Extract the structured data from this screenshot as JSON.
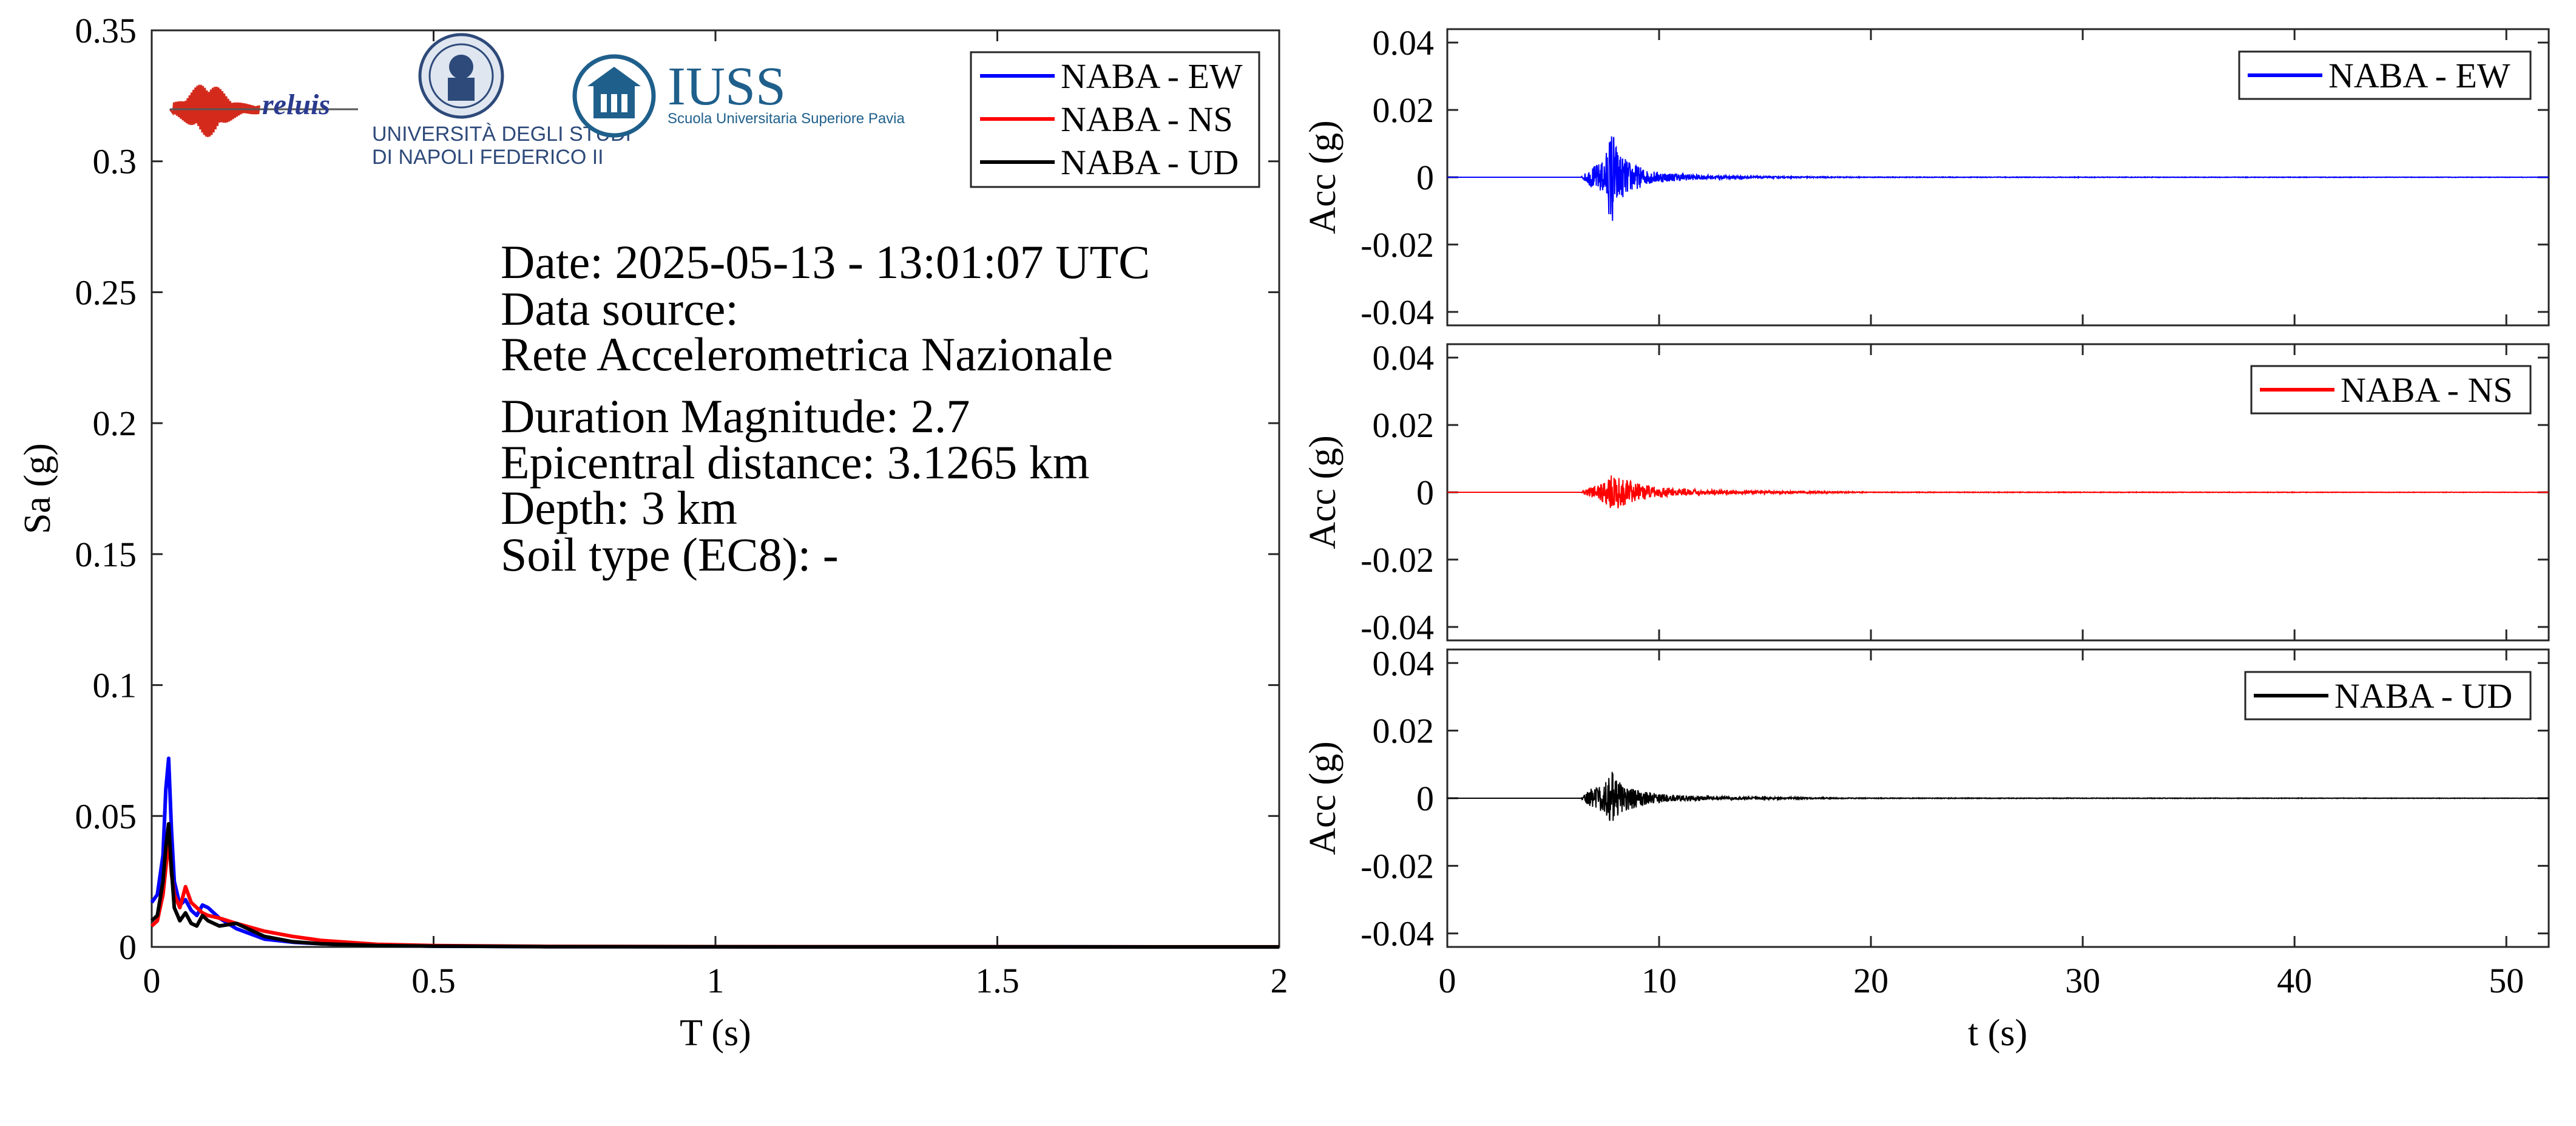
{
  "chart_data": [
    {
      "type": "line",
      "xlabel": "T (s)",
      "ylabel": "Sa (g)",
      "xlim": [
        0,
        2
      ],
      "ylim": [
        0,
        0.35
      ],
      "xticks": [
        "0",
        "0.5",
        "1",
        "1.5",
        "2"
      ],
      "yticks": [
        "0",
        "0.05",
        "0.1",
        "0.15",
        "0.2",
        "0.25",
        "0.3",
        "0.35"
      ],
      "legend_position": "top-right",
      "series": [
        {
          "name": "NABA - EW",
          "color": "#0000ff",
          "x": [
            0,
            0.01,
            0.02,
            0.025,
            0.03,
            0.035,
            0.04,
            0.05,
            0.06,
            0.07,
            0.08,
            0.09,
            0.1,
            0.12,
            0.15,
            0.2,
            0.25,
            0.3,
            0.4,
            0.5,
            0.7,
            1.0,
            1.5,
            2.0
          ],
          "y": [
            0.017,
            0.02,
            0.035,
            0.06,
            0.072,
            0.045,
            0.025,
            0.016,
            0.018,
            0.014,
            0.012,
            0.016,
            0.015,
            0.011,
            0.007,
            0.003,
            0.0018,
            0.0012,
            0.0006,
            0.0003,
            0.0001,
            5e-05,
            2e-05,
            1e-05
          ]
        },
        {
          "name": "NABA - NS",
          "color": "#ff0000",
          "x": [
            0,
            0.01,
            0.02,
            0.025,
            0.03,
            0.035,
            0.04,
            0.05,
            0.06,
            0.07,
            0.08,
            0.09,
            0.1,
            0.12,
            0.15,
            0.2,
            0.25,
            0.3,
            0.4,
            0.5,
            0.7,
            1.0,
            1.5,
            2.0
          ],
          "y": [
            0.008,
            0.01,
            0.02,
            0.03,
            0.042,
            0.028,
            0.02,
            0.015,
            0.023,
            0.017,
            0.015,
            0.013,
            0.012,
            0.011,
            0.009,
            0.006,
            0.004,
            0.0025,
            0.001,
            0.0005,
            0.0002,
            0.0001,
            4e-05,
            2e-05
          ]
        },
        {
          "name": "NABA - UD",
          "color": "#000000",
          "x": [
            0,
            0.01,
            0.02,
            0.025,
            0.03,
            0.035,
            0.04,
            0.05,
            0.06,
            0.07,
            0.08,
            0.09,
            0.1,
            0.12,
            0.15,
            0.2,
            0.25,
            0.3,
            0.4,
            0.5,
            0.7,
            1.0,
            1.5,
            2.0
          ],
          "y": [
            0.01,
            0.012,
            0.025,
            0.038,
            0.047,
            0.03,
            0.015,
            0.01,
            0.013,
            0.009,
            0.008,
            0.012,
            0.01,
            0.008,
            0.009,
            0.004,
            0.002,
            0.0012,
            0.0005,
            0.0003,
            0.0001,
            5e-05,
            2e-05,
            1e-05
          ]
        }
      ]
    },
    {
      "type": "line",
      "xlabel": "",
      "ylabel": "Acc (g)",
      "xlim": [
        0,
        52
      ],
      "ylim": [
        -0.044,
        0.044
      ],
      "yticks": [
        "0.04",
        "0.02",
        "0",
        "-0.02",
        "-0.04"
      ],
      "legend_position": "top-right",
      "series": [
        {
          "name": "NABA - EW",
          "color": "#0000ff",
          "envelope": {
            "t": [
              0,
              6.3,
              6.8,
              7.4,
              7.7,
              7.8,
              8.0,
              8.3,
              8.8,
              9.5,
              10.5,
              12,
              14,
              16,
              20,
              52
            ],
            "amp": [
              0,
              0,
              0.003,
              0.005,
              0.013,
              0.016,
              0.009,
              0.006,
              0.004,
              0.002,
              0.0013,
              0.0007,
              0.0004,
              0.0002,
              0.0001,
              5e-05
            ]
          }
        }
      ]
    },
    {
      "type": "line",
      "xlabel": "",
      "ylabel": "Acc (g)",
      "xlim": [
        0,
        52
      ],
      "ylim": [
        -0.044,
        0.044
      ],
      "yticks": [
        "0.04",
        "0.02",
        "0",
        "-0.02",
        "-0.04"
      ],
      "legend_position": "top-right",
      "series": [
        {
          "name": "NABA - NS",
          "color": "#ff0000",
          "envelope": {
            "t": [
              0,
              6.3,
              6.8,
              7.4,
              7.8,
              8.0,
              8.3,
              8.8,
              9.5,
              10.5,
              12,
              14,
              17,
              20,
              52
            ],
            "amp": [
              0,
              0,
              0.002,
              0.004,
              0.006,
              0.005,
              0.004,
              0.003,
              0.002,
              0.0012,
              0.0008,
              0.0005,
              0.0003,
              0.0001,
              5e-05
            ]
          }
        }
      ]
    },
    {
      "type": "line",
      "xlabel": "t (s)",
      "ylabel": "Acc (g)",
      "xlim": [
        0,
        52
      ],
      "ylim": [
        -0.044,
        0.044
      ],
      "xticks": [
        "0",
        "10",
        "20",
        "30",
        "40",
        "50"
      ],
      "yticks": [
        "0.04",
        "0.02",
        "0",
        "-0.02",
        "-0.04"
      ],
      "legend_position": "top-right",
      "series": [
        {
          "name": "NABA - UD",
          "color": "#000000",
          "envelope": {
            "t": [
              0,
              6.3,
              6.8,
              7.4,
              7.8,
              8.0,
              8.3,
              8.8,
              9.5,
              10.5,
              12,
              14,
              17,
              20,
              52
            ],
            "amp": [
              0,
              0,
              0.003,
              0.004,
              0.008,
              0.006,
              0.004,
              0.003,
              0.0018,
              0.001,
              0.0006,
              0.0004,
              0.0002,
              0.0001,
              5e-05
            ]
          }
        }
      ]
    }
  ],
  "info": {
    "date": "Date: 2025-05-13 - 13:01:07 UTC",
    "data_source_label": "Data source:",
    "data_source": "Rete Accelerometrica Nazionale",
    "magnitude": "Duration Magnitude: 2.7",
    "distance": "Epicentral distance: 3.1265 km",
    "depth": "Depth: 3 km",
    "soil": "Soil type (EC8): -"
  },
  "logos": {
    "reluis": "reluis",
    "unina_line1": "UNIVERSITÀ DEGLI STUDI",
    "unina_line2": "DI NAPOLI FEDERICO II",
    "iuss": "IUSS",
    "iuss_sub": "Scuola Universitaria Superiore Pavia"
  }
}
